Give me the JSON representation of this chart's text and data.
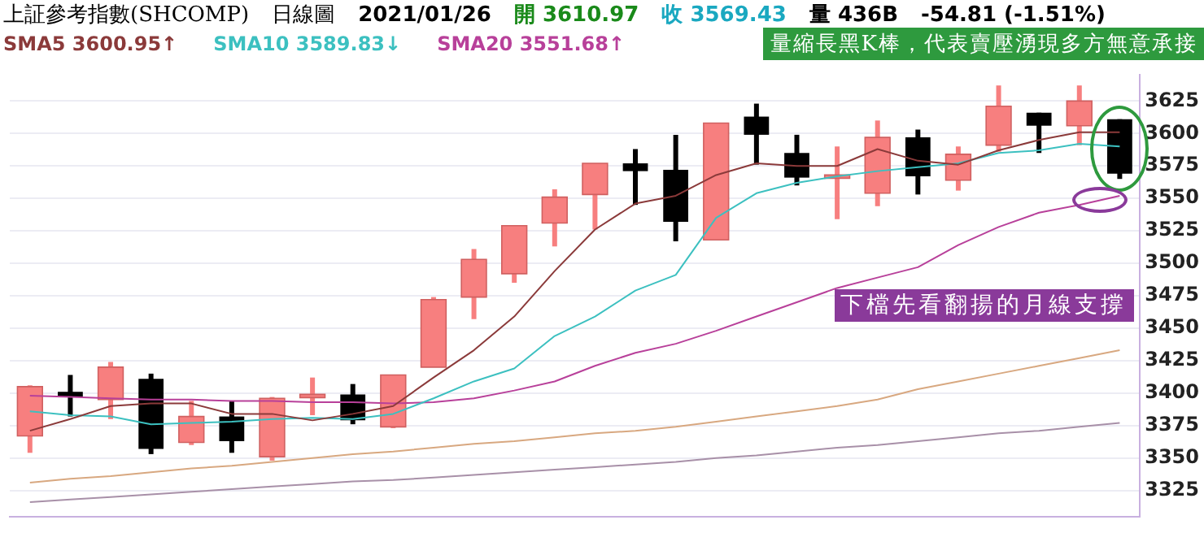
{
  "chart_data": {
    "type": "candlestick",
    "title": "上証參考指數(SHCOMP)",
    "subtitle": "日線圖",
    "annotations": [
      "2021/01/26",
      "開 3610.97",
      "收 3569.43",
      "量 436B",
      "-54.81 (-1.51%)",
      "量縮長黑K棒，代表賣壓湧現多方無意承接",
      "下檔先看翻揚的月線支撐"
    ],
    "categories": [
      null,
      null,
      null,
      null,
      null,
      null,
      null,
      null,
      null,
      null,
      null,
      null,
      null,
      null,
      null,
      null,
      null,
      null,
      null,
      null,
      null,
      null,
      null,
      null,
      null,
      null,
      null,
      null
    ],
    "ohlc": [
      [
        3367,
        3406,
        3354,
        3405
      ],
      [
        3401,
        3414,
        3382,
        3397
      ],
      [
        3395,
        3424,
        3380,
        3420
      ],
      [
        3411,
        3415,
        3353,
        3357
      ],
      [
        3362,
        3394,
        3360,
        3382
      ],
      [
        3382,
        3394,
        3354,
        3363
      ],
      [
        3351,
        3397,
        3348,
        3396
      ],
      [
        3397,
        3412,
        3383,
        3399
      ],
      [
        3399,
        3407,
        3376,
        3379
      ],
      [
        3374,
        3414,
        3373,
        3414
      ],
      [
        3420,
        3474,
        3420,
        3472
      ],
      [
        3474,
        3511,
        3457,
        3503
      ],
      [
        3492,
        3529,
        3485,
        3529
      ],
      [
        3531,
        3557,
        3513,
        3551
      ],
      [
        3553,
        3577,
        3526,
        3577
      ],
      [
        3577,
        3588,
        3545,
        3571
      ],
      [
        3572,
        3599,
        3517,
        3532
      ],
      [
        3518,
        3608,
        3518,
        3608
      ],
      [
        3613,
        3623,
        3576,
        3599
      ],
      [
        3585,
        3599,
        3560,
        3566
      ],
      [
        3566,
        3590,
        3534,
        3568
      ],
      [
        3554,
        3610,
        3544,
        3597
      ],
      [
        3597,
        3603,
        3553,
        3567
      ],
      [
        3564,
        3590,
        3556,
        3584
      ],
      [
        3591,
        3637,
        3586,
        3621
      ],
      [
        3616,
        3616,
        3585,
        3606
      ],
      [
        3606,
        3637,
        3591,
        3625
      ],
      [
        3611,
        3611,
        3565,
        3569
      ]
    ],
    "colors": [
      "#f77f7f",
      "#000000",
      "#f77f7f",
      "#000000",
      "#f77f7f",
      "#000000",
      "#f77f7f",
      "#f77f7f",
      "#000000",
      "#f77f7f",
      "#f77f7f",
      "#f77f7f",
      "#f77f7f",
      "#f77f7f",
      "#f77f7f",
      "#000000",
      "#000000",
      "#f77f7f",
      "#000000",
      "#000000",
      "#f77f7f",
      "#f77f7f",
      "#000000",
      "#f77f7f",
      "#f77f7f",
      "#000000",
      "#f77f7f",
      "#000000"
    ],
    "series": [
      {
        "type": "line",
        "name": "SMA5 3600.95↑",
        "color": "#8b3a3a",
        "values": [
          3371,
          3380,
          3390,
          3392,
          3392,
          3384,
          3384,
          3379,
          3384,
          3390,
          3412,
          3433,
          3459,
          3494,
          3526,
          3546,
          3552,
          3568,
          3577,
          3575,
          3575,
          3588,
          3579,
          3576,
          3587,
          3595,
          3601,
          3601
        ]
      },
      {
        "type": "line",
        "name": "SMA10 3589.83↓",
        "color": "#3cc0c0",
        "values": [
          3386,
          3383,
          3382,
          3376,
          3377,
          3378,
          3380,
          3381,
          3380,
          3384,
          3396,
          3409,
          3419,
          3444,
          3459,
          3479,
          3491,
          3535,
          3554,
          3562,
          3567,
          3571,
          3574,
          3577,
          3585,
          3587,
          3592,
          3590
        ]
      },
      {
        "type": "line",
        "name": "SMA20 3551.68↑",
        "color": "#b8409a",
        "values": [
          3398,
          3397,
          3396,
          3395,
          3395,
          3394,
          3394,
          3393,
          3393,
          3392,
          3393,
          3396,
          3402,
          3409,
          3421,
          3431,
          3438,
          3448,
          3459,
          3470,
          3481,
          3489,
          3497,
          3514,
          3528,
          3539,
          3545,
          3552
        ]
      },
      {
        "type": "line",
        "color": "#d8a880",
        "values": [
          3331,
          3334,
          3336,
          3339,
          3342,
          3344,
          3347,
          3350,
          3353,
          3355,
          3358,
          3361,
          3363,
          3366,
          3369,
          3371,
          3374,
          3378,
          3382,
          3386,
          3390,
          3395,
          3403,
          3409,
          3415,
          3421,
          3427,
          3433
        ]
      },
      {
        "type": "line",
        "color": "#a890a8",
        "values": [
          3316,
          3318,
          3320,
          3322,
          3324,
          3326,
          3328,
          3330,
          3332,
          3333,
          3335,
          3337,
          3339,
          3341,
          3343,
          3345,
          3347,
          3350,
          3352,
          3355,
          3358,
          3360,
          3363,
          3366,
          3369,
          3371,
          3374,
          3377
        ]
      }
    ],
    "ylim": [
      3305,
      3645
    ],
    "yticks": [
      3325,
      3350,
      3375,
      3400,
      3425,
      3450,
      3475,
      3500,
      3525,
      3550,
      3575,
      3600,
      3625
    ],
    "grid": "y",
    "legend": "top left",
    "tick_labels": "y"
  }
}
